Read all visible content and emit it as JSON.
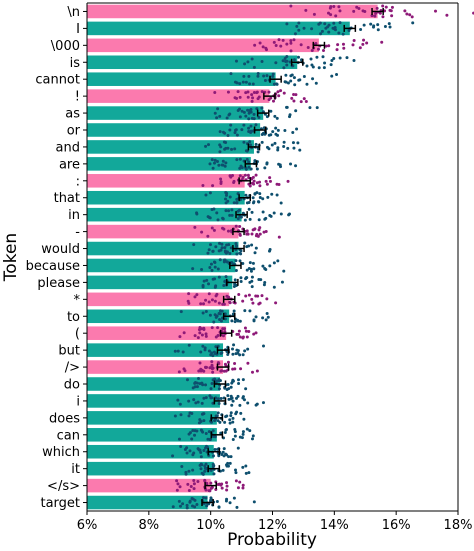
{
  "chart_data": {
    "type": "bar",
    "orientation": "horizontal",
    "xlabel": "Probability",
    "ylabel": "Token",
    "xlim": [
      6,
      18
    ],
    "xticks": [
      6,
      8,
      10,
      12,
      14,
      16,
      18
    ],
    "xtick_labels": [
      "6%",
      "8%",
      "10%",
      "12%",
      "14%",
      "16%",
      "18%"
    ],
    "categories": [
      "\\n",
      "I",
      "\\000",
      "is",
      "cannot",
      "!",
      "as",
      "or",
      "and",
      "are",
      ":",
      "that",
      "in",
      "-",
      "would",
      "because",
      "please",
      "*",
      "to",
      "(",
      "but",
      "/>",
      "do",
      "i",
      "does",
      "can",
      "which",
      "it",
      "</s>",
      "target"
    ],
    "values": [
      15.4,
      14.5,
      13.5,
      12.8,
      12.1,
      11.9,
      11.7,
      11.6,
      11.4,
      11.3,
      11.1,
      11.1,
      11.0,
      10.9,
      10.9,
      10.8,
      10.7,
      10.6,
      10.6,
      10.5,
      10.4,
      10.4,
      10.3,
      10.3,
      10.2,
      10.2,
      10.1,
      10.1,
      10.0,
      9.9
    ],
    "bar_colors": [
      "pink",
      "teal",
      "pink",
      "teal",
      "teal",
      "pink",
      "teal",
      "teal",
      "teal",
      "teal",
      "pink",
      "teal",
      "teal",
      "pink",
      "teal",
      "teal",
      "teal",
      "pink",
      "teal",
      "pink",
      "teal",
      "pink",
      "teal",
      "teal",
      "teal",
      "teal",
      "teal",
      "teal",
      "pink",
      "teal"
    ],
    "colors": {
      "pink_bar": "#fb7aae",
      "teal_bar": "#12a89a",
      "pink_dots": "#8e1a78",
      "teal_dots": "#0e4f6e",
      "error_bar": "#000000"
    },
    "grid": false
  }
}
